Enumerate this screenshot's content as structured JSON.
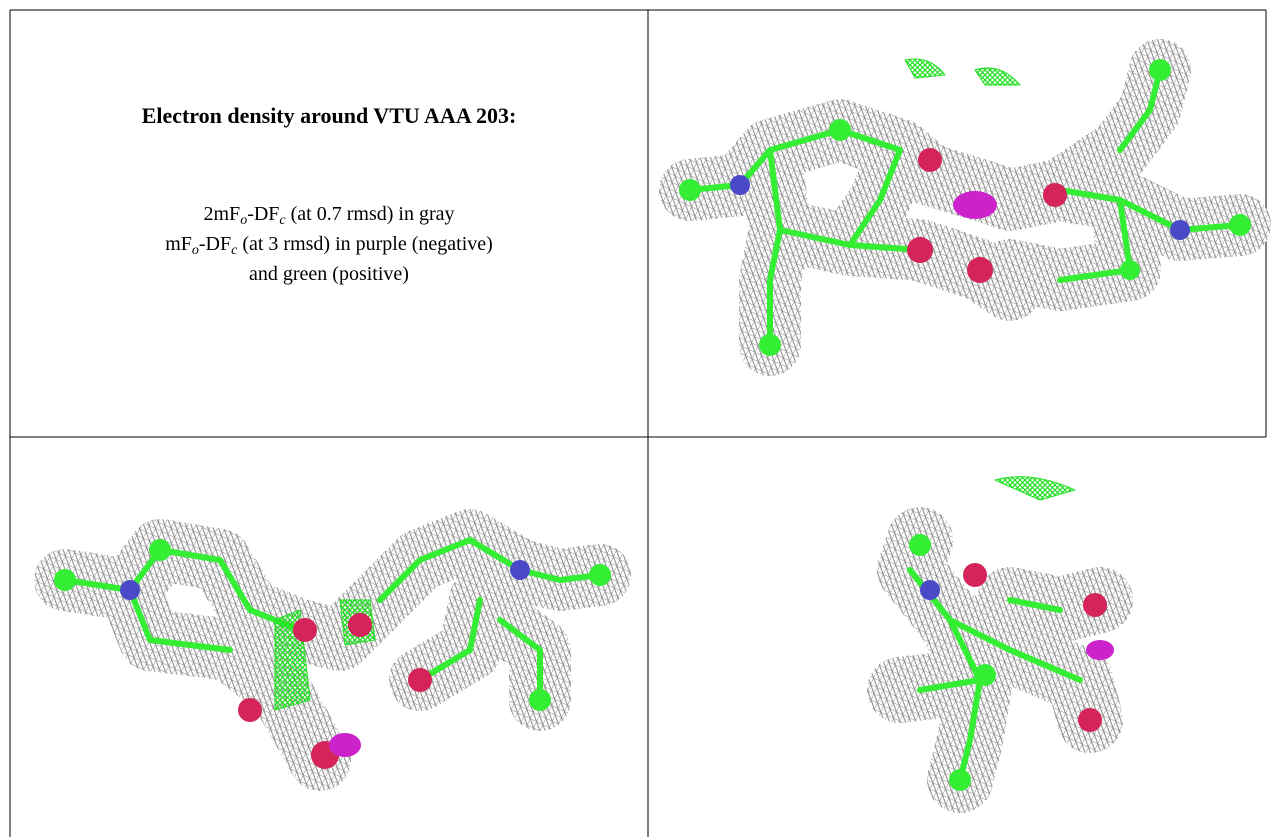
{
  "title": "Electron density around VTU AAA 203:",
  "lines": [
    {
      "a": "2mF",
      "s1": "o",
      "b": "-DF",
      "s2": "c",
      "c": " (at 0.7 rmsd) in gray"
    },
    {
      "a": "mF",
      "s1": "o",
      "b": "-DF",
      "s2": "c",
      "c": " (at 3 rmsd) in purple (negative)"
    },
    {
      "c": "and green (positive)"
    }
  ]
}
